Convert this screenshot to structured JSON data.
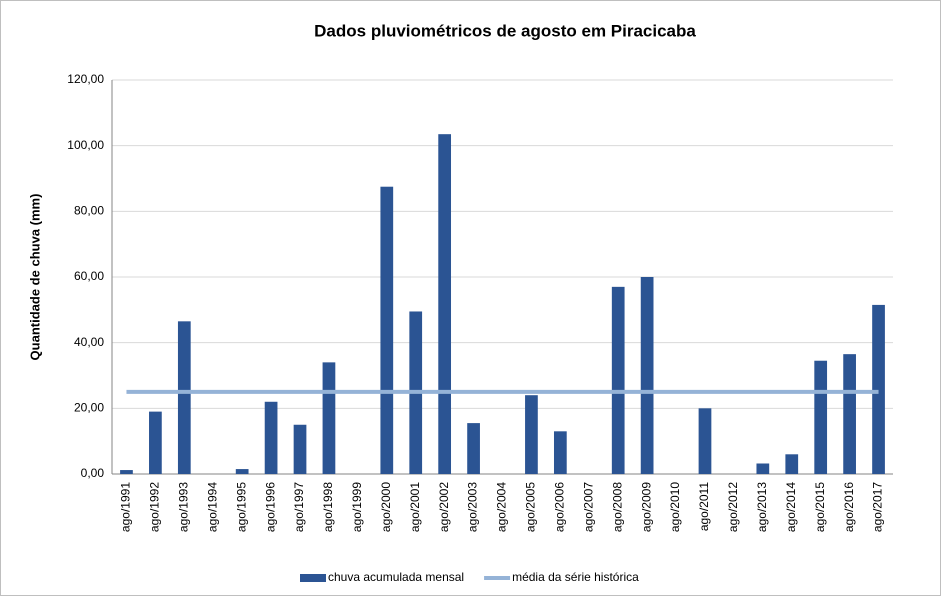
{
  "chart_data": {
    "type": "bar",
    "title": "Dados pluviométricos de agosto em Piracicaba",
    "y_label": "Quantidade de chuva (mm)",
    "categories": [
      "ago/1991",
      "ago/1992",
      "ago/1993",
      "ago/1994",
      "ago/1995",
      "ago/1996",
      "ago/1997",
      "ago/1998",
      "ago/1999",
      "ago/2000",
      "ago/2001",
      "ago/2002",
      "ago/2003",
      "ago/2004",
      "ago/2005",
      "ago/2006",
      "ago/2007",
      "ago/2008",
      "ago/2009",
      "ago/2010",
      "ago/2011",
      "ago/2012",
      "ago/2013",
      "ago/2014",
      "ago/2015",
      "ago/2016",
      "ago/2017"
    ],
    "series": [
      {
        "name": "chuva acumulada mensal",
        "type": "bar",
        "color": "#2b5493",
        "values": [
          1.2,
          19,
          46.5,
          0,
          1.5,
          22,
          15,
          34,
          0,
          87.5,
          49.5,
          103.5,
          15.5,
          0,
          24,
          13,
          0,
          57,
          60,
          0,
          20,
          0,
          3.2,
          6,
          34.5,
          36.5,
          51.5
        ]
      },
      {
        "name": "média da série histórica",
        "type": "line",
        "color": "#95b3d7",
        "values": [
          25,
          25,
          25,
          25,
          25,
          25,
          25,
          25,
          25,
          25,
          25,
          25,
          25,
          25,
          25,
          25,
          25,
          25,
          25,
          25,
          25,
          25,
          25,
          25,
          25,
          25,
          25
        ]
      }
    ],
    "ylim": [
      0,
      120
    ],
    "yticks": [
      {
        "value": 0,
        "label": "0,00"
      },
      {
        "value": 20,
        "label": "20,00"
      },
      {
        "value": 40,
        "label": "40,00"
      },
      {
        "value": 60,
        "label": "60,00"
      },
      {
        "value": 80,
        "label": "80,00"
      },
      {
        "value": 100,
        "label": "100,00"
      },
      {
        "value": 120,
        "label": "120,00"
      }
    ],
    "grid": true,
    "legend": "bottom"
  }
}
